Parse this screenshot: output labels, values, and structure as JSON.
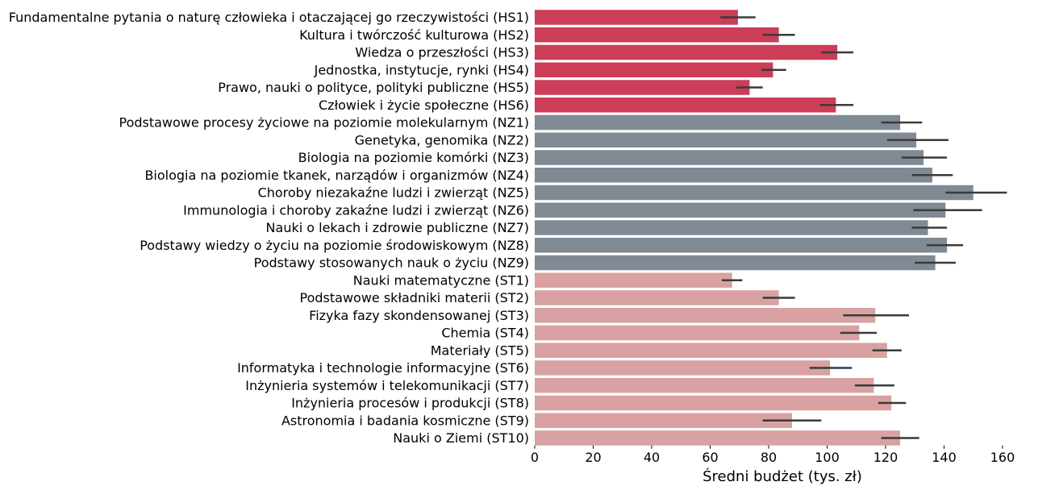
{
  "chart_data": {
    "type": "bar",
    "orientation": "horizontal",
    "xlabel": "Średni budżet (tys. zł)",
    "ylabel": "",
    "xlim": [
      0,
      160
    ],
    "xticks": [
      0,
      20,
      40,
      60,
      80,
      100,
      120,
      140,
      160
    ],
    "grid": false,
    "groups": {
      "HS": "#cc3d58",
      "NZ": "#808a94",
      "ST": "#d9a1a1"
    },
    "error_color": "#3a3a3a",
    "bars": [
      {
        "label": "Fundamentalne pytania o naturę człowieka i otaczającej go rzeczywistości (HS1)",
        "group": "HS",
        "value": 69.5,
        "err_low": 63.5,
        "err_high": 75.5
      },
      {
        "label": "Kultura i twórczość kulturowa (HS2)",
        "group": "HS",
        "value": 83.5,
        "err_low": 78,
        "err_high": 89
      },
      {
        "label": "Wiedza o przeszłości (HS3)",
        "group": "HS",
        "value": 103.5,
        "err_low": 98,
        "err_high": 109
      },
      {
        "label": "Jednostka, instytucje, rynki (HS4)",
        "group": "HS",
        "value": 81.5,
        "err_low": 77.5,
        "err_high": 86
      },
      {
        "label": "Prawo, nauki o polityce, polityki publiczne (HS5)",
        "group": "HS",
        "value": 73.5,
        "err_low": 69,
        "err_high": 78
      },
      {
        "label": "Człowiek i życie społeczne (HS6)",
        "group": "HS",
        "value": 103,
        "err_low": 97.5,
        "err_high": 109
      },
      {
        "label": "Podstawowe procesy życiowe na poziomie molekularnym (NZ1)",
        "group": "NZ",
        "value": 125,
        "err_low": 118.5,
        "err_high": 132.5
      },
      {
        "label": "Genetyka, genomika (NZ2)",
        "group": "NZ",
        "value": 130.5,
        "err_low": 120.5,
        "err_high": 141.5
      },
      {
        "label": "Biologia na poziomie komórki (NZ3)",
        "group": "NZ",
        "value": 133,
        "err_low": 125.5,
        "err_high": 141
      },
      {
        "label": "Biologia na poziomie tkanek, narządów i organizmów (NZ4)",
        "group": "NZ",
        "value": 136,
        "err_low": 129,
        "err_high": 143
      },
      {
        "label": "Choroby niezakaźne ludzi i zwierząt (NZ5)",
        "group": "NZ",
        "value": 150,
        "err_low": 140.5,
        "err_high": 161.5
      },
      {
        "label": "Immunologia i choroby zakaźne ludzi i zwierząt (NZ6)",
        "group": "NZ",
        "value": 140.5,
        "err_low": 129.5,
        "err_high": 153
      },
      {
        "label": "Nauki o lekach i zdrowie publiczne (NZ7)",
        "group": "NZ",
        "value": 134.5,
        "err_low": 129,
        "err_high": 141
      },
      {
        "label": "Podstawy wiedzy o życiu na poziomie środowiskowym (NZ8)",
        "group": "NZ",
        "value": 141,
        "err_low": 134,
        "err_high": 146.5
      },
      {
        "label": "Podstawy stosowanych nauk o życiu (NZ9)",
        "group": "NZ",
        "value": 137,
        "err_low": 130,
        "err_high": 144
      },
      {
        "label": "Nauki matematyczne (ST1)",
        "group": "ST",
        "value": 67.5,
        "err_low": 64,
        "err_high": 71
      },
      {
        "label": "Podstawowe składniki materii (ST2)",
        "group": "ST",
        "value": 83.5,
        "err_low": 78,
        "err_high": 89
      },
      {
        "label": "Fizyka fazy skondensowanej (ST3)",
        "group": "ST",
        "value": 116.5,
        "err_low": 105.5,
        "err_high": 128
      },
      {
        "label": "Chemia (ST4)",
        "group": "ST",
        "value": 111,
        "err_low": 104.5,
        "err_high": 117
      },
      {
        "label": "Materiały (ST5)",
        "group": "ST",
        "value": 120.5,
        "err_low": 115.5,
        "err_high": 125.5
      },
      {
        "label": "Informatyka i technologie informacyjne (ST6)",
        "group": "ST",
        "value": 101,
        "err_low": 94,
        "err_high": 108.5
      },
      {
        "label": "Inżynieria systemów i telekomunikacji (ST7)",
        "group": "ST",
        "value": 116,
        "err_low": 109.5,
        "err_high": 123
      },
      {
        "label": "Inżynieria procesów i produkcji (ST8)",
        "group": "ST",
        "value": 122,
        "err_low": 117.5,
        "err_high": 127
      },
      {
        "label": "Astronomia i badania kosmiczne (ST9)",
        "group": "ST",
        "value": 88,
        "err_low": 78,
        "err_high": 98
      },
      {
        "label": "Nauki o Ziemi (ST10)",
        "group": "ST",
        "value": 125,
        "err_low": 118.5,
        "err_high": 131.5
      }
    ]
  }
}
